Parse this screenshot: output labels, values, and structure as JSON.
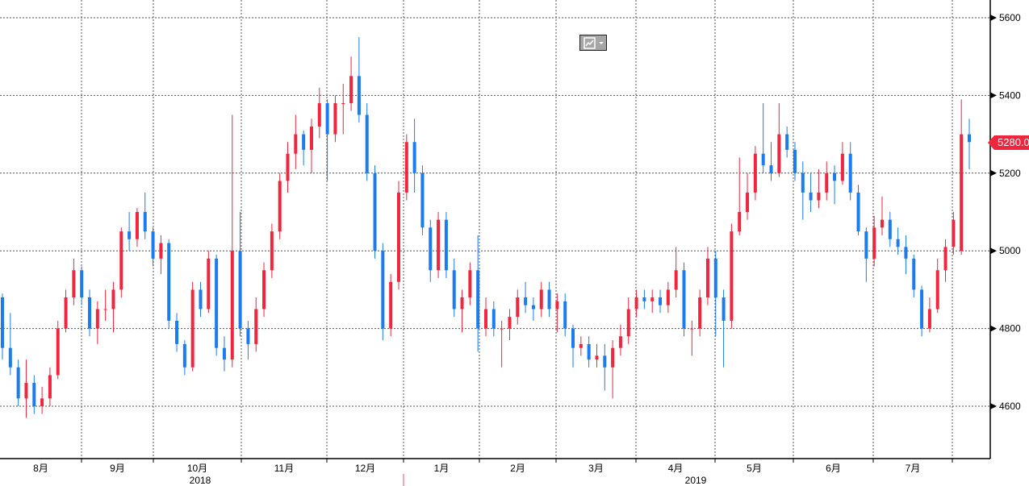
{
  "chart_data": {
    "type": "candlestick",
    "title": "",
    "y_ticks": [
      4600,
      4800,
      5000,
      5200,
      5400,
      5600
    ],
    "ylim": [
      4470,
      5640
    ],
    "x_months": [
      "8月",
      "9月",
      "10月",
      "11月",
      "12月",
      "1月",
      "2月",
      "3月",
      "4月",
      "5月",
      "6月",
      "7月"
    ],
    "x_years": [
      "2018",
      "2019"
    ],
    "last_price": "5280.0",
    "up_color": "#f0263f",
    "down_color": "#1a7cf0",
    "ohlc": [
      [
        4880,
        4890,
        4720,
        4750
      ],
      [
        4750,
        4840,
        4680,
        4700
      ],
      [
        4700,
        4720,
        4600,
        4620
      ],
      [
        4620,
        4720,
        4570,
        4660
      ],
      [
        4660,
        4680,
        4580,
        4600
      ],
      [
        4600,
        4650,
        4580,
        4620
      ],
      [
        4620,
        4700,
        4600,
        4680
      ],
      [
        4680,
        4820,
        4670,
        4800
      ],
      [
        4800,
        4900,
        4790,
        4880
      ],
      [
        4880,
        4980,
        4860,
        4950
      ],
      [
        4950,
        4960,
        4860,
        4880
      ],
      [
        4880,
        4900,
        4780,
        4800
      ],
      [
        4800,
        4870,
        4760,
        4850
      ],
      [
        4850,
        4900,
        4820,
        4850
      ],
      [
        4850,
        4920,
        4790,
        4900
      ],
      [
        4900,
        5060,
        4880,
        5050
      ],
      [
        5050,
        5100,
        5000,
        5030
      ],
      [
        5030,
        5110,
        5010,
        5100
      ],
      [
        5100,
        5150,
        5030,
        5050
      ],
      [
        5050,
        5060,
        4960,
        4980
      ],
      [
        4980,
        5040,
        4940,
        5020
      ],
      [
        5020,
        5030,
        4800,
        4820
      ],
      [
        4820,
        4840,
        4740,
        4760
      ],
      [
        4760,
        4770,
        4680,
        4700
      ],
      [
        4700,
        4920,
        4690,
        4900
      ],
      [
        4900,
        4920,
        4830,
        4850
      ],
      [
        4850,
        5000,
        4840,
        4980
      ],
      [
        4980,
        4990,
        4730,
        4750
      ],
      [
        4750,
        4780,
        4690,
        4720
      ],
      [
        4720,
        5350,
        4700,
        5000
      ],
      [
        5000,
        5100,
        4780,
        4800
      ],
      [
        4800,
        4820,
        4720,
        4760
      ],
      [
        4760,
        4880,
        4740,
        4850
      ],
      [
        4850,
        4970,
        4830,
        4950
      ],
      [
        4950,
        5070,
        4930,
        5050
      ],
      [
        5050,
        5200,
        5030,
        5180
      ],
      [
        5180,
        5280,
        5150,
        5250
      ],
      [
        5250,
        5350,
        5210,
        5300
      ],
      [
        5300,
        5310,
        5220,
        5260
      ],
      [
        5260,
        5340,
        5200,
        5320
      ],
      [
        5320,
        5420,
        5290,
        5380
      ],
      [
        5380,
        5390,
        5180,
        5300
      ],
      [
        5300,
        5400,
        5280,
        5380
      ],
      [
        5380,
        5430,
        5300,
        5380
      ],
      [
        5380,
        5500,
        5360,
        5450
      ],
      [
        5450,
        5550,
        5330,
        5350
      ],
      [
        5350,
        5380,
        5180,
        5200
      ],
      [
        5200,
        5220,
        4980,
        5000
      ],
      [
        5000,
        5020,
        4770,
        4800
      ],
      [
        4800,
        4940,
        4780,
        4920
      ],
      [
        4920,
        5180,
        4900,
        5150
      ],
      [
        5150,
        5300,
        5130,
        5280
      ],
      [
        5280,
        5340,
        5150,
        5200
      ],
      [
        5200,
        5220,
        5040,
        5060
      ],
      [
        5060,
        5080,
        4920,
        4950
      ],
      [
        4950,
        5100,
        4930,
        5080
      ],
      [
        5080,
        5100,
        4930,
        4950
      ],
      [
        4950,
        4980,
        4830,
        4850
      ],
      [
        4850,
        4900,
        4790,
        4880
      ],
      [
        4880,
        4970,
        4860,
        4950
      ],
      [
        4950,
        5040,
        4740,
        4800
      ],
      [
        4800,
        4880,
        4780,
        4850
      ],
      [
        4850,
        4870,
        4780,
        4800
      ],
      [
        4800,
        4820,
        4700,
        4800
      ],
      [
        4800,
        4850,
        4770,
        4830
      ],
      [
        4830,
        4900,
        4810,
        4880
      ],
      [
        4880,
        4920,
        4840,
        4860
      ],
      [
        4860,
        4880,
        4820,
        4850
      ],
      [
        4850,
        4920,
        4830,
        4900
      ],
      [
        4900,
        4920,
        4830,
        4850
      ],
      [
        4850,
        4890,
        4790,
        4870
      ],
      [
        4870,
        4890,
        4780,
        4800
      ],
      [
        4800,
        4810,
        4700,
        4750
      ],
      [
        4750,
        4780,
        4730,
        4760
      ],
      [
        4760,
        4780,
        4700,
        4720
      ],
      [
        4720,
        4760,
        4700,
        4730
      ],
      [
        4730,
        4760,
        4640,
        4700
      ],
      [
        4700,
        4770,
        4620,
        4750
      ],
      [
        4750,
        4810,
        4730,
        4780
      ],
      [
        4780,
        4880,
        4760,
        4850
      ],
      [
        4850,
        4900,
        4830,
        4880
      ],
      [
        4880,
        4900,
        4850,
        4870
      ],
      [
        4870,
        4900,
        4840,
        4880
      ],
      [
        4880,
        4900,
        4840,
        4860
      ],
      [
        4860,
        4920,
        4840,
        4900
      ],
      [
        4900,
        5010,
        4880,
        4950
      ],
      [
        4950,
        4970,
        4780,
        4800
      ],
      [
        4800,
        4820,
        4730,
        4800
      ],
      [
        4800,
        4900,
        4780,
        4880
      ],
      [
        4880,
        5010,
        4860,
        4980
      ],
      [
        4980,
        5000,
        4780,
        4880
      ],
      [
        4880,
        4900,
        4700,
        4820
      ],
      [
        4820,
        5070,
        4800,
        5050
      ],
      [
        5050,
        5240,
        5040,
        5100
      ],
      [
        5100,
        5200,
        5080,
        5150
      ],
      [
        5150,
        5270,
        5130,
        5250
      ],
      [
        5250,
        5380,
        5200,
        5220
      ],
      [
        5220,
        5280,
        5180,
        5200
      ],
      [
        5200,
        5380,
        5190,
        5300
      ],
      [
        5300,
        5320,
        5240,
        5260
      ],
      [
        5260,
        5280,
        5180,
        5200
      ],
      [
        5200,
        5230,
        5080,
        5150
      ],
      [
        5150,
        5200,
        5100,
        5130
      ],
      [
        5130,
        5210,
        5110,
        5150
      ],
      [
        5150,
        5230,
        5130,
        5200
      ],
      [
        5200,
        5220,
        5120,
        5180
      ],
      [
        5180,
        5280,
        5170,
        5250
      ],
      [
        5250,
        5280,
        5130,
        5150
      ],
      [
        5150,
        5170,
        5040,
        5050
      ],
      [
        5050,
        5060,
        4920,
        4980
      ],
      [
        4980,
        5090,
        4960,
        5060
      ],
      [
        5060,
        5140,
        5040,
        5080
      ],
      [
        5080,
        5100,
        5010,
        5030
      ],
      [
        5030,
        5060,
        4990,
        5010
      ],
      [
        5010,
        5040,
        4940,
        4980
      ],
      [
        4980,
        4990,
        4880,
        4900
      ],
      [
        4900,
        4910,
        4780,
        4800
      ],
      [
        4800,
        4880,
        4790,
        4850
      ],
      [
        4850,
        4980,
        4840,
        4950
      ],
      [
        4950,
        5030,
        4920,
        5010
      ],
      [
        5010,
        5100,
        4990,
        5080
      ],
      [
        5000,
        5390,
        4990,
        5300
      ],
      [
        5300,
        5340,
        5210,
        5280
      ]
    ]
  }
}
